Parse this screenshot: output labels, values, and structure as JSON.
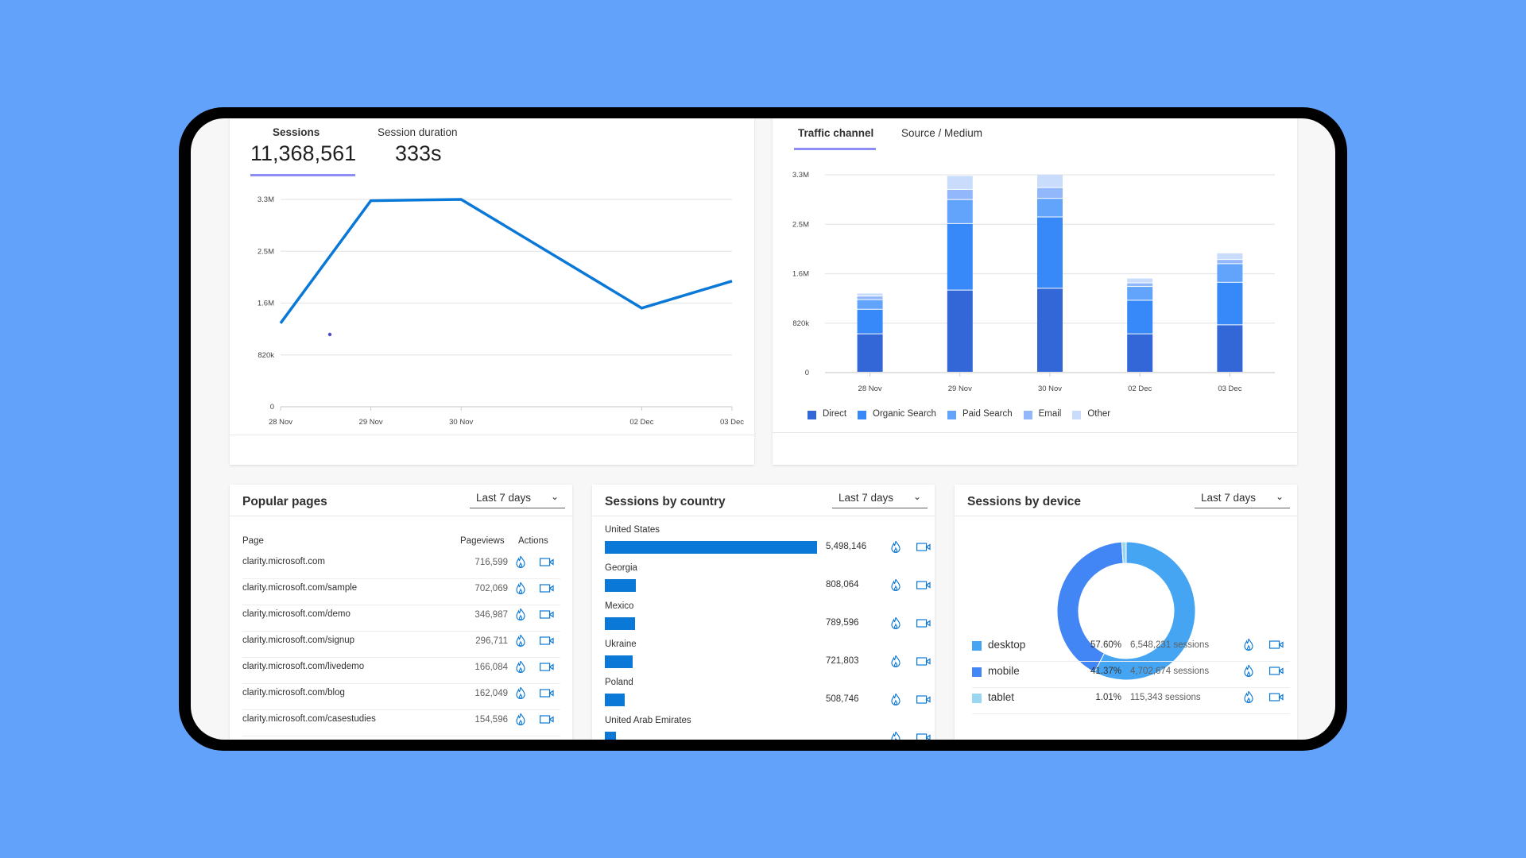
{
  "colors": {
    "background": "#63a2fb",
    "accent_underline": "#8e8cf5",
    "line": "#0a78d6",
    "country_bar": "#0a78d6"
  },
  "summary": {
    "tabs": [
      {
        "label": "Sessions",
        "value": "11,368,561",
        "active": true
      },
      {
        "label": "Session duration",
        "value": "333s",
        "active": false
      }
    ]
  },
  "traffic": {
    "tabs": [
      {
        "label": "Traffic channel",
        "active": true
      },
      {
        "label": "Source / Medium",
        "active": false
      }
    ]
  },
  "chart_data": [
    {
      "type": "line",
      "categories": [
        "28 Nov",
        "29 Nov",
        "30 Nov",
        "02 Dec",
        "03 Dec"
      ],
      "series": [
        {
          "values": [
            1330000,
            3280000,
            3300000,
            1570000,
            2000000
          ],
          "color": "#0a78d6"
        }
      ],
      "yticks": [
        "0",
        "820k",
        "1.6M",
        "2.5M",
        "3.3M"
      ],
      "ylim": [
        0,
        3300000
      ],
      "grid": true
    },
    {
      "type": "bar",
      "stacked": true,
      "categories": [
        "28 Nov",
        "29 Nov",
        "30 Nov",
        "02 Dec",
        "03 Dec"
      ],
      "yticks": [
        "0",
        "820k",
        "1.6M",
        "2.5M",
        "3.3M"
      ],
      "ylim": [
        0,
        3300000
      ],
      "grid": true,
      "legend": "bottom",
      "series": [
        {
          "name": "Direct",
          "color": "#3366d6",
          "values": [
            640000,
            1370000,
            1400000,
            640000,
            790000
          ]
        },
        {
          "name": "Organic Search",
          "color": "#3788f8",
          "values": [
            410000,
            1110000,
            1190000,
            560000,
            710000
          ]
        },
        {
          "name": "Paid Search",
          "color": "#62a3fb",
          "values": [
            160000,
            400000,
            310000,
            230000,
            310000
          ]
        },
        {
          "name": "Email",
          "color": "#93b7fb",
          "values": [
            60000,
            170000,
            180000,
            60000,
            70000
          ]
        },
        {
          "name": "Other",
          "color": "#c9dcfc",
          "values": [
            50000,
            230000,
            220000,
            80000,
            110000
          ]
        }
      ]
    }
  ],
  "popular_pages": {
    "title": "Popular pages",
    "range": "Last 7 days",
    "headers": {
      "page": "Page",
      "pageviews": "Pageviews",
      "actions": "Actions"
    },
    "rows": [
      {
        "page": "clarity.microsoft.com",
        "views": "716,599"
      },
      {
        "page": "clarity.microsoft.com/sample",
        "views": "702,069"
      },
      {
        "page": "clarity.microsoft.com/demo",
        "views": "346,987"
      },
      {
        "page": "clarity.microsoft.com/signup",
        "views": "296,711"
      },
      {
        "page": "clarity.microsoft.com/livedemo",
        "views": "166,084"
      },
      {
        "page": "clarity.microsoft.com/blog",
        "views": "162,049"
      },
      {
        "page": "clarity.microsoft.com/casestudies",
        "views": "154,596"
      }
    ]
  },
  "countries": {
    "title": "Sessions by country",
    "range": "Last 7 days",
    "rows": [
      {
        "name": "United States",
        "value": "5,498,146",
        "n": 5498146
      },
      {
        "name": "Georgia",
        "value": "808,064",
        "n": 808064
      },
      {
        "name": "Mexico",
        "value": "789,596",
        "n": 789596
      },
      {
        "name": "Ukraine",
        "value": "721,803",
        "n": 721803
      },
      {
        "name": "Poland",
        "value": "508,746",
        "n": 508746
      },
      {
        "name": "United Arab Emirates",
        "value": "",
        "n": 280000
      }
    ]
  },
  "devices": {
    "title": "Sessions by device",
    "range": "Last 7 days",
    "rows": [
      {
        "name": "desktop",
        "pct": "57.60%",
        "p": 57.6,
        "sessions": "6,548,231 sessions",
        "color": "#45a5f2"
      },
      {
        "name": "mobile",
        "pct": "41.37%",
        "p": 41.37,
        "sessions": "4,702,674 sessions",
        "color": "#4285f4"
      },
      {
        "name": "tablet",
        "pct": "1.01%",
        "p": 1.01,
        "sessions": "115,343 sessions",
        "color": "#9bd6f0"
      }
    ]
  }
}
